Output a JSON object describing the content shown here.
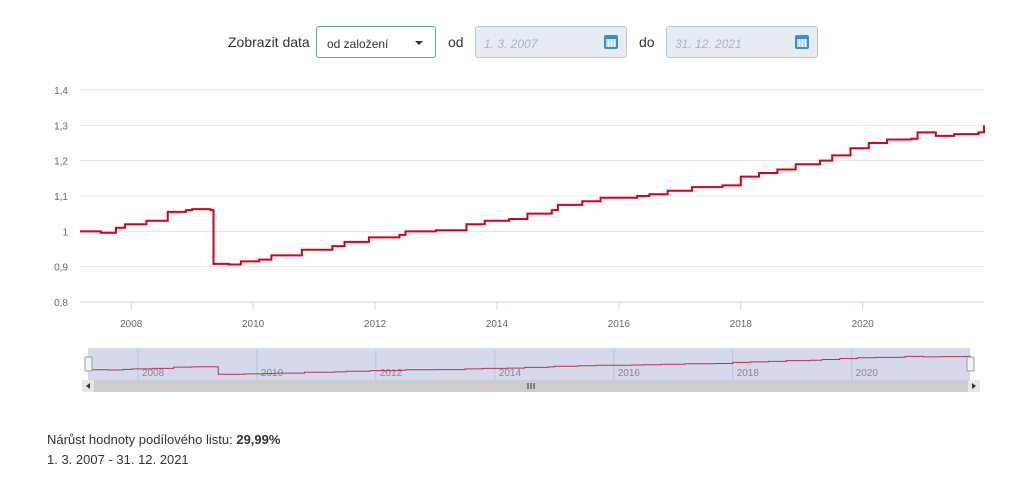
{
  "controls": {
    "show_label": "Zobrazit data",
    "range_select": "od založení",
    "from_label": "od",
    "from_value": "1. 3. 2007",
    "to_label": "do",
    "to_value": "31. 12. 2021"
  },
  "summary": {
    "label": "Nárůst hodnoty podílového listu: ",
    "value": "29,99%",
    "period": "1. 3. 2007 - 31. 12. 2021"
  },
  "chart_data": {
    "type": "line",
    "title": "",
    "xlabel": "",
    "ylabel": "",
    "line_color": "#d0021b",
    "yticks": [
      "0,8",
      "0,9",
      "1",
      "1,1",
      "1,2",
      "1,3",
      "1,4"
    ],
    "ylim": [
      0.8,
      1.4
    ],
    "xticks": [
      "2008",
      "2010",
      "2012",
      "2014",
      "2016",
      "2018",
      "2020"
    ],
    "xlim": [
      2007.16,
      2021.99
    ],
    "x": [
      2007.16,
      2007.5,
      2007.75,
      2007.9,
      2008.25,
      2008.6,
      2008.9,
      2009.0,
      2009.3,
      2009.35,
      2009.6,
      2009.8,
      2010.1,
      2010.3,
      2010.8,
      2011.3,
      2011.5,
      2011.9,
      2012.4,
      2012.5,
      2013.0,
      2013.5,
      2013.8,
      2014.2,
      2014.5,
      2014.9,
      2015.0,
      2015.4,
      2015.7,
      2016.3,
      2016.5,
      2016.8,
      2017.2,
      2017.7,
      2018.0,
      2018.3,
      2018.6,
      2018.9,
      2019.3,
      2019.5,
      2019.8,
      2020.1,
      2020.4,
      2020.8,
      2020.9,
      2021.2,
      2021.5,
      2021.9,
      2021.99
    ],
    "y": [
      1.0,
      0.996,
      1.01,
      1.02,
      1.03,
      1.055,
      1.06,
      1.063,
      1.06,
      0.908,
      0.906,
      0.915,
      0.92,
      0.932,
      0.948,
      0.958,
      0.97,
      0.983,
      0.99,
      1.0,
      1.003,
      1.02,
      1.03,
      1.035,
      1.05,
      1.06,
      1.075,
      1.085,
      1.095,
      1.1,
      1.105,
      1.115,
      1.125,
      1.13,
      1.155,
      1.165,
      1.175,
      1.19,
      1.2,
      1.215,
      1.235,
      1.25,
      1.26,
      1.262,
      1.28,
      1.27,
      1.275,
      1.28,
      1.2999
    ]
  }
}
